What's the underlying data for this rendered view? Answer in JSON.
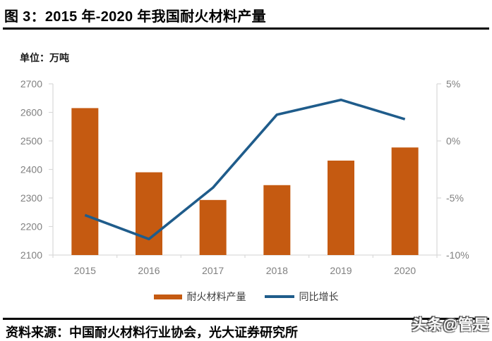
{
  "header": {
    "title": "图 3：2015 年-2020 年我国耐火材料产量"
  },
  "chart": {
    "unit_label": "单位：万吨"
  },
  "legend": {
    "items": [
      {
        "label": "耐火材料产量"
      },
      {
        "label": "同比增长"
      }
    ]
  },
  "footer": {
    "source_text": "资料来源：中国耐火材料行业协会，光大证券研究所",
    "watermark": "头条@管是"
  },
  "colors": {
    "bar": "#C55A11",
    "line": "#1F5C8B",
    "axis_line": "#D9D9D9",
    "tick_label": "#808080",
    "title_text": "#000000"
  },
  "chart_data": {
    "type": "bar+line",
    "title": "2015 年-2020 年我国耐火材料产量",
    "categories": [
      "2015",
      "2016",
      "2017",
      "2018",
      "2019",
      "2020"
    ],
    "series": [
      {
        "name": "耐火材料产量",
        "type": "bar",
        "axis": "left",
        "unit": "万吨",
        "values": [
          2615,
          2390,
          2293,
          2345,
          2431,
          2477
        ]
      },
      {
        "name": "同比增长",
        "type": "line",
        "axis": "right",
        "unit": "%",
        "values": [
          -6.5,
          -8.6,
          -4.1,
          2.3,
          3.6,
          1.9
        ]
      }
    ],
    "left_axis": {
      "label": "单位：万吨",
      "min": 2100,
      "max": 2700,
      "tick_step": 100,
      "ticks": [
        "2700",
        "2600",
        "2500",
        "2400",
        "2300",
        "2200",
        "2100"
      ],
      "tick_values": [
        2700,
        2600,
        2500,
        2400,
        2300,
        2200,
        2100
      ]
    },
    "right_axis": {
      "min": -10,
      "max": 5,
      "tick_step": 5,
      "ticks": [
        "5%",
        "0%",
        "-5%",
        "-10%"
      ],
      "tick_values": [
        5,
        0,
        -5,
        -10
      ]
    },
    "grid": false,
    "legend_position": "bottom"
  }
}
